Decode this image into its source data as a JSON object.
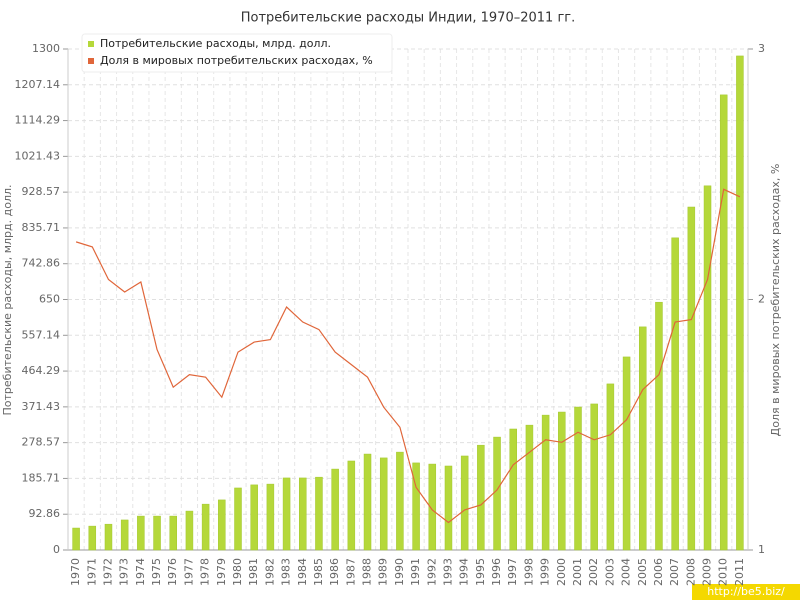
{
  "chart_data": {
    "type": "bar-line",
    "title": "Потребительские расходы Индии, 1970–2011 гг.",
    "y_label": "Потребительские расходы, млрд. долл.",
    "y2_label": "Доля в мировых потребительских расходах, %",
    "watermark": "http://be5.biz/",
    "categories": [
      "1970",
      "1971",
      "1972",
      "1973",
      "1974",
      "1975",
      "1976",
      "1977",
      "1978",
      "1979",
      "1980",
      "1981",
      "1982",
      "1983",
      "1984",
      "1985",
      "1986",
      "1987",
      "1988",
      "1989",
      "1990",
      "1991",
      "1992",
      "1993",
      "1994",
      "1995",
      "1996",
      "1997",
      "1998",
      "1999",
      "2000",
      "2001",
      "2002",
      "2003",
      "2004",
      "2005",
      "2006",
      "2007",
      "2008",
      "2009",
      "2010",
      "2011"
    ],
    "series": [
      {
        "name": "Потребительские расходы, млрд. долл.",
        "color": "#b5d83a",
        "type": "bar",
        "values": [
          57,
          62,
          67,
          78,
          88,
          88,
          88,
          101,
          119,
          130,
          161,
          169,
          171,
          187,
          187,
          189,
          210,
          231,
          249,
          239,
          254,
          226,
          223,
          218,
          244,
          272,
          293,
          314,
          324,
          350,
          358,
          371,
          379,
          431,
          501,
          579,
          643,
          810,
          890,
          945,
          1181,
          1282
        ]
      },
      {
        "name": "Доля в мировых потребительских расходах, %",
        "color": "#e0663a",
        "type": "line",
        "axis": "y2",
        "values": [
          2.23,
          2.21,
          2.08,
          2.03,
          2.07,
          1.8,
          1.65,
          1.7,
          1.69,
          1.61,
          1.79,
          1.83,
          1.84,
          1.97,
          1.91,
          1.88,
          1.79,
          1.74,
          1.69,
          1.57,
          1.49,
          1.25,
          1.16,
          1.11,
          1.16,
          1.18,
          1.24,
          1.34,
          1.39,
          1.44,
          1.43,
          1.47,
          1.44,
          1.46,
          1.52,
          1.64,
          1.7,
          1.91,
          1.92,
          2.08,
          2.44,
          2.41
        ]
      }
    ],
    "ylim": [
      0,
      1300
    ],
    "yticks": [
      0,
      92.86,
      185.71,
      278.57,
      371.43,
      464.29,
      557.14,
      650,
      742.86,
      835.71,
      928.57,
      1021.43,
      1114.29,
      1207.14,
      1300
    ],
    "y2lim": [
      1,
      3
    ],
    "y2ticks": [
      1,
      2,
      3
    ],
    "grid": true,
    "legend": "top-left"
  }
}
